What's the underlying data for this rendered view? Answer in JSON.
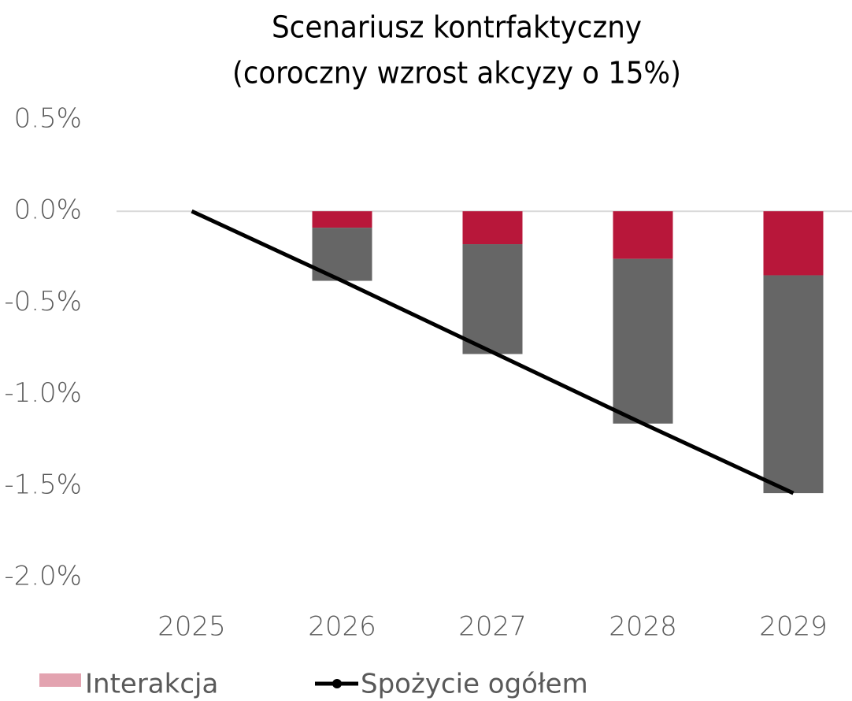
{
  "chart_data": {
    "type": "stacked_bar_line",
    "title": "Scenariusz kontrfaktyczny",
    "subtitle": "(coroczny wzrost akcyzy o 15%)",
    "categories": [
      "2025",
      "2026",
      "2027",
      "2028",
      "2029"
    ],
    "series": [
      {
        "color": "#b8173a",
        "values": [
          0,
          -0.09,
          -0.18,
          -0.26,
          -0.35
        ]
      },
      {
        "color": "#666666",
        "values": [
          0,
          -0.29,
          -0.6,
          -0.9,
          -1.19
        ]
      },
      {
        "name": "Spożycie ogółem",
        "type": "line",
        "color": "#000000",
        "values": [
          0,
          -0.38,
          -0.77,
          -1.16,
          -1.54
        ]
      }
    ],
    "legend": [
      {
        "name": "Interakcja",
        "color": "#e3a3b0",
        "marker": "rect"
      },
      {
        "name": "Spożycie ogółem",
        "color": "#000000",
        "marker": "line"
      }
    ],
    "ylim": [
      -2.0,
      0.5
    ],
    "yticks": [
      {
        "value": 0.5,
        "label": "0.5%"
      },
      {
        "value": 0.0,
        "label": "0.0%"
      },
      {
        "value": -0.5,
        "label": "-0.5%"
      },
      {
        "value": -1.0,
        "label": "-1.0%"
      },
      {
        "value": -1.5,
        "label": "-1.5%"
      },
      {
        "value": -2.0,
        "label": "-2.0%"
      }
    ],
    "grid": false
  }
}
